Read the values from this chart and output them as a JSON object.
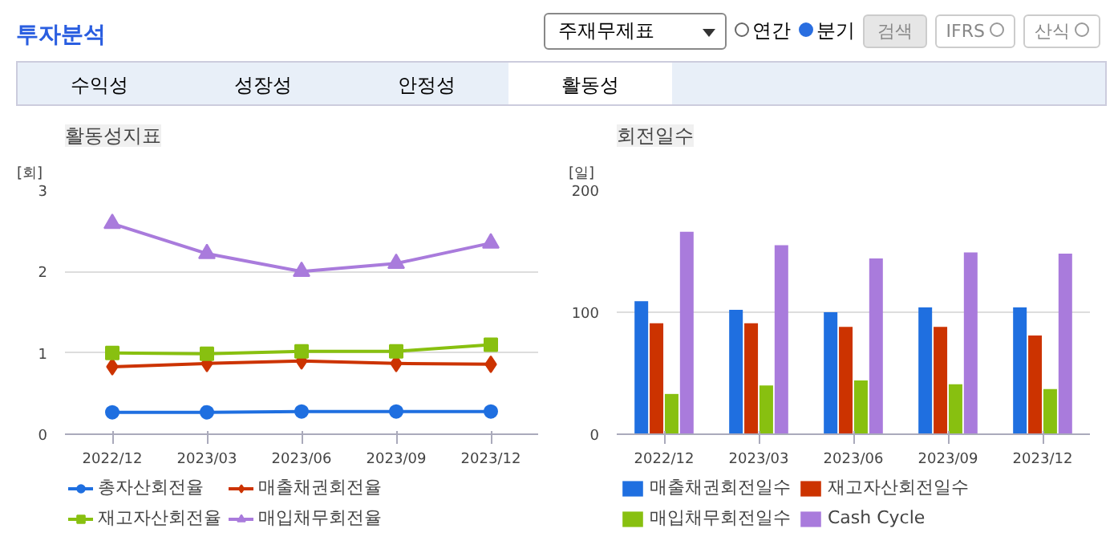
{
  "chart_data": [
    {
      "type": "other",
      "title": "투자분석",
      "annotations": [
        "주재무제표",
        "연간",
        "분기",
        "검색",
        "IFRS",
        "산식",
        "수익성",
        "성장성",
        "안정성",
        "활동성"
      ]
    },
    {
      "type": "line",
      "title": "활동성지표",
      "ylabel": "[회]",
      "categories": [
        "2022/12",
        "2023/03",
        "2023/06",
        "2023/09",
        "2023/12"
      ],
      "ylim": [
        0,
        3
      ],
      "yticks": [
        0,
        1,
        2,
        3
      ],
      "grid": "y",
      "legend": "bottom",
      "series": [
        {
          "name": "총자산회전율",
          "color": "#1f6fe0",
          "marker": "circle",
          "values": [
            0.27,
            0.27,
            0.28,
            0.28,
            0.28
          ]
        },
        {
          "name": "매출채권회전율",
          "color": "#cc3300",
          "marker": "diamond",
          "values": [
            0.83,
            0.87,
            0.9,
            0.87,
            0.86
          ]
        },
        {
          "name": "재고자산회전율",
          "color": "#88c010",
          "marker": "square",
          "values": [
            1.0,
            0.99,
            1.02,
            1.02,
            1.1
          ]
        },
        {
          "name": "매입채무회전율",
          "color": "#a97bdc",
          "marker": "triangle",
          "values": [
            2.59,
            2.22,
            2.0,
            2.1,
            2.35
          ]
        }
      ]
    },
    {
      "type": "bar",
      "title": "회전일수",
      "ylabel": "[일]",
      "categories": [
        "2022/12",
        "2023/03",
        "2023/06",
        "2023/09",
        "2023/12"
      ],
      "ylim": [
        0,
        200
      ],
      "yticks": [
        0,
        100,
        200
      ],
      "grid": "y",
      "legend": "bottom",
      "series": [
        {
          "name": "매출채권회전일수",
          "color": "#1f6fe0",
          "values": [
            109,
            102,
            100,
            104,
            104
          ]
        },
        {
          "name": "재고자산회전일수",
          "color": "#cc3300",
          "values": [
            91,
            91,
            88,
            88,
            81
          ]
        },
        {
          "name": "매입채무회전일수",
          "color": "#88c010",
          "values": [
            33,
            40,
            44,
            41,
            37
          ]
        },
        {
          "name": "Cash Cycle",
          "color": "#a97bdc",
          "values": [
            166,
            155,
            144,
            149,
            148
          ]
        }
      ]
    }
  ]
}
